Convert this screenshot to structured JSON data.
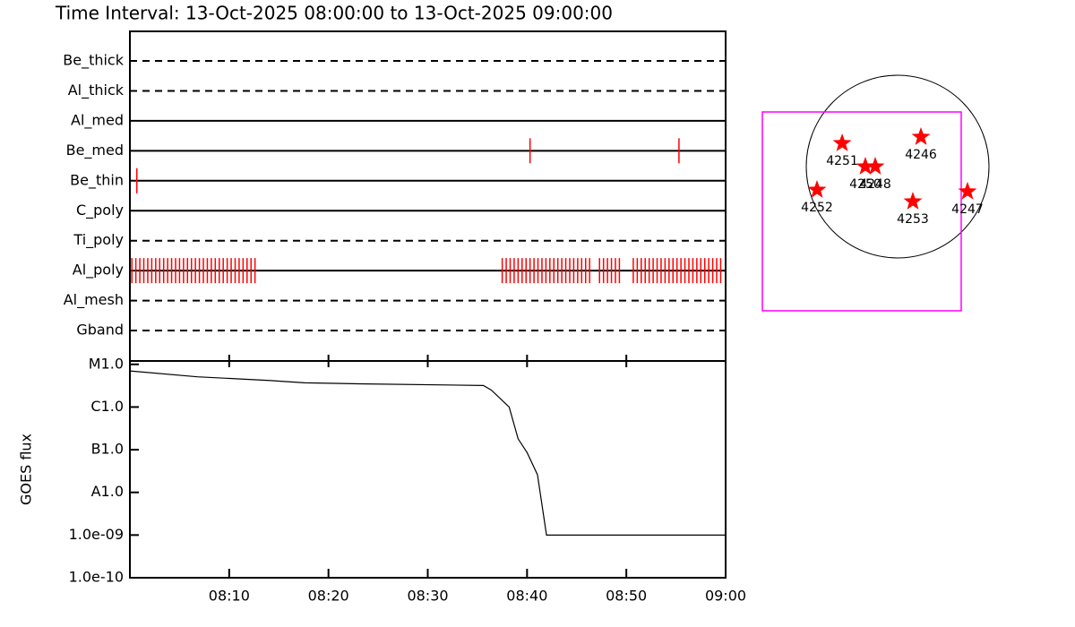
{
  "chart_data": [
    {
      "type": "timeline",
      "title": "Time Interval: 13-Oct-2025 08:00:00 to 13-Oct-2025 09:00:00",
      "color": "#ff0000",
      "xlim": [
        0,
        60
      ],
      "xticks": [
        {
          "value": 10,
          "label": "08:10"
        },
        {
          "value": 20,
          "label": "08:20"
        },
        {
          "value": 30,
          "label": "08:30"
        },
        {
          "value": 40,
          "label": "08:40"
        },
        {
          "value": 50,
          "label": "08:50"
        },
        {
          "value": 60,
          "label": "09:00"
        }
      ],
      "rows": [
        {
          "name": "Be_thick",
          "line": "dashed",
          "times": []
        },
        {
          "name": "Al_thick",
          "line": "dashed",
          "times": []
        },
        {
          "name": "Al_med",
          "line": "solid",
          "times": []
        },
        {
          "name": "Be_med",
          "line": "solid",
          "times": [
            40.3,
            55.3
          ]
        },
        {
          "name": "Be_thin",
          "line": "solid",
          "times": [
            0.7
          ]
        },
        {
          "name": "C_poly",
          "line": "solid",
          "times": []
        },
        {
          "name": "Ti_poly",
          "line": "dashed",
          "times": []
        },
        {
          "name": "Al_poly",
          "line": "solid",
          "times": [
            0.2,
            0.6,
            1.0,
            1.4,
            1.8,
            2.2,
            2.6,
            3.0,
            3.4,
            3.8,
            4.2,
            4.6,
            5.0,
            5.4,
            5.8,
            6.2,
            6.6,
            7.0,
            7.4,
            7.8,
            8.2,
            8.6,
            9.0,
            9.4,
            9.8,
            10.2,
            10.6,
            11.0,
            11.4,
            11.8,
            12.2,
            12.6,
            37.5,
            37.9,
            38.3,
            38.7,
            39.1,
            39.5,
            39.9,
            40.3,
            40.7,
            41.1,
            41.5,
            41.9,
            42.3,
            42.7,
            43.1,
            43.5,
            43.9,
            44.3,
            44.7,
            45.1,
            45.5,
            45.9,
            46.3,
            47.3,
            47.7,
            48.1,
            48.5,
            48.9,
            49.3,
            50.7,
            51.1,
            51.5,
            51.9,
            52.3,
            52.7,
            53.1,
            53.5,
            53.9,
            54.3,
            54.7,
            55.1,
            55.5,
            55.9,
            56.3,
            56.7,
            57.1,
            57.5,
            57.9,
            58.3,
            58.7,
            59.1,
            59.5
          ]
        },
        {
          "name": "Al_mesh",
          "line": "dashed",
          "times": []
        },
        {
          "name": "Gband",
          "line": "dashed",
          "times": []
        }
      ]
    },
    {
      "type": "line",
      "ylabel": "GOES flux",
      "log": true,
      "color": "#000000",
      "xlim": [
        0,
        60
      ],
      "ylim": [
        1e-10,
        1.2e-05
      ],
      "yticks": [
        {
          "value": 1e-05,
          "label": "M1.0"
        },
        {
          "value": 1e-06,
          "label": "C1.0"
        },
        {
          "value": 1e-07,
          "label": "B1.0"
        },
        {
          "value": 1e-08,
          "label": "A1.0"
        },
        {
          "value": 1e-09,
          "label": "1.0e-09"
        },
        {
          "value": 1e-10,
          "label": "1.0e-10"
        }
      ],
      "x": [
        0,
        6.8,
        14.0,
        17.6,
        23.0,
        35.6,
        36.4,
        38.2,
        39.1,
        40.0,
        41.05,
        41.96,
        60
      ],
      "values": [
        7e-06,
        5.1e-06,
        4.2e-06,
        3.7e-06,
        3.5e-06,
        3.2e-06,
        2.5e-06,
        1e-06,
        1.8e-07,
        8.6e-08,
        2.6e-08,
        1e-09,
        1e-09
      ]
    },
    {
      "type": "scatter",
      "color": "#ff0000",
      "radius": 960,
      "fov": {
        "xlim": [
          -1421,
          668
        ],
        "ylim": [
          -1515,
          574
        ],
        "color": "#ff00ff"
      },
      "labels": [
        "4251",
        "4246",
        "4250",
        "4248",
        "4252",
        "4253",
        "4247"
      ],
      "x": [
        -583,
        245,
        -339,
        -235,
        -847,
        160,
        734
      ],
      "values": [
        245,
        311,
        0,
        0,
        -245,
        -367,
        -263
      ]
    }
  ]
}
